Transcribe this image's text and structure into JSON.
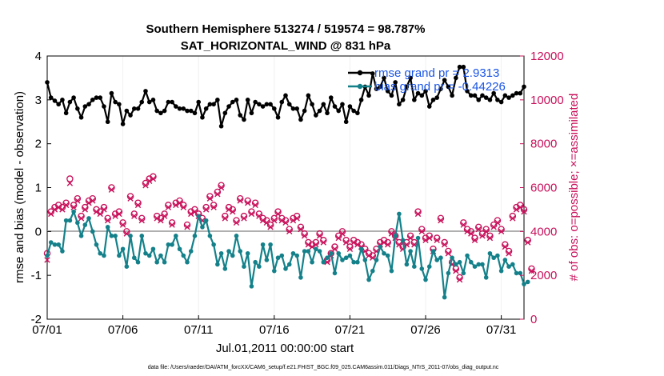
{
  "chart_data": {
    "type": "line",
    "title": "Southern Hemisphere 513274 / 519574 = 98.787%",
    "subtitle": "SAT_HORIZONTAL_WIND @ 831 hPa",
    "xlabel": "Jul.01,2011 00:00:00 start",
    "ylabel": "rmse and bias (model - observation)",
    "y2label": "# of obs: o=possible; ×=assimilated",
    "footnote": "data file: /Users/raeder/DAI/ATM_forcXX/CAM6_setup/f.e21.FHIST_BGC.f09_025.CAM6assim.011/Diags_NTrS_2011-07/obs_diag_output.nc",
    "x_range_days": [
      0,
      31.5
    ],
    "ylim": [
      -2,
      4
    ],
    "y2lim": [
      0,
      12000
    ],
    "xticks": [
      {
        "day": 0,
        "label": "07/01"
      },
      {
        "day": 5,
        "label": "07/06"
      },
      {
        "day": 10,
        "label": "07/11"
      },
      {
        "day": 15,
        "label": "07/16"
      },
      {
        "day": 20,
        "label": "07/21"
      },
      {
        "day": 25,
        "label": "07/26"
      },
      {
        "day": 30,
        "label": "07/31"
      }
    ],
    "yticks": [
      {
        "v": 4,
        "label": "4"
      },
      {
        "v": 3,
        "label": "3"
      },
      {
        "v": 2,
        "label": "2"
      },
      {
        "v": 1,
        "label": "1"
      },
      {
        "v": 0,
        "label": "0"
      },
      {
        "v": -1,
        "label": "-1"
      },
      {
        "v": -2,
        "label": "-2"
      }
    ],
    "y2ticks": [
      {
        "v": 12000,
        "label": "12000"
      },
      {
        "v": 10000,
        "label": "10000"
      },
      {
        "v": 8000,
        "label": "8000"
      },
      {
        "v": 6000,
        "label": "6000"
      },
      {
        "v": 4000,
        "label": "4000"
      },
      {
        "v": 2000,
        "label": "2000"
      },
      {
        "v": 0,
        "label": "0"
      }
    ],
    "x_step_days": 0.25,
    "series": [
      {
        "name": "rmse grand pr = 2.9313",
        "axis": "left",
        "color": "#000000",
        "values": [
          3.4,
          3.05,
          2.98,
          2.9,
          3.0,
          2.7,
          2.95,
          3.05,
          2.8,
          2.6,
          2.85,
          2.9,
          3.0,
          3.05,
          3.05,
          2.85,
          2.5,
          3.15,
          2.95,
          2.9,
          2.45,
          2.75,
          2.65,
          2.8,
          2.8,
          2.95,
          3.2,
          2.95,
          3.0,
          2.75,
          2.7,
          2.75,
          2.95,
          2.95,
          2.85,
          2.8,
          2.8,
          2.75,
          2.75,
          2.7,
          2.95,
          2.6,
          2.8,
          2.9,
          2.9,
          3.0,
          2.4,
          2.7,
          2.85,
          2.95,
          3.0,
          2.65,
          2.55,
          3.0,
          2.7,
          2.95,
          2.9,
          2.85,
          2.9,
          2.9,
          2.8,
          2.6,
          2.95,
          3.1,
          2.9,
          2.8,
          2.8,
          2.55,
          2.75,
          3.1,
          2.9,
          2.65,
          2.75,
          2.9,
          2.7,
          3.05,
          2.85,
          2.75,
          2.9,
          2.5,
          2.85,
          2.75,
          2.7,
          3.0,
          3.3,
          3.1,
          3.6,
          3.25,
          3.3,
          3.5,
          3.2,
          3.1,
          3.4,
          2.9,
          3.0,
          3.3,
          3.5,
          3.0,
          3.15,
          3.1,
          3.2,
          2.85,
          3.0,
          3.05,
          3.25,
          3.45,
          3.3,
          3.1,
          3.5,
          3.75,
          3.75,
          3.2,
          3.1,
          3.1,
          3.0,
          3.1,
          3.05,
          3.0,
          3.15,
          3.0,
          2.95,
          3.1,
          3.05,
          3.1,
          3.15,
          3.15,
          3.3
        ]
      },
      {
        "name": "bias grand pr = -0.44226",
        "axis": "left",
        "color": "#14818a",
        "values": [
          -0.55,
          -0.25,
          -0.3,
          -0.3,
          -0.45,
          0.25,
          0.25,
          0.45,
          0.2,
          -0.1,
          0.15,
          0.3,
          0.0,
          -0.3,
          -0.5,
          -0.55,
          0.1,
          -0.1,
          -0.1,
          -0.55,
          -0.4,
          -0.8,
          -0.1,
          -0.6,
          -0.7,
          -0.1,
          -0.5,
          -0.55,
          -0.4,
          -0.7,
          -0.55,
          -0.7,
          -0.3,
          -0.3,
          -0.1,
          -0.4,
          -0.55,
          -0.7,
          -0.45,
          -0.1,
          0.35,
          0.1,
          0.25,
          -0.1,
          -0.3,
          -0.75,
          -0.5,
          -0.85,
          -0.45,
          -0.55,
          -0.1,
          -0.45,
          -0.8,
          -0.5,
          -1.25,
          -0.7,
          -0.8,
          -0.3,
          -0.65,
          -0.3,
          -0.9,
          -0.6,
          -0.55,
          -0.85,
          -0.75,
          -0.5,
          -0.55,
          -1.05,
          -0.45,
          -0.45,
          -0.7,
          -0.4,
          -0.45,
          -0.7,
          -0.6,
          -0.5,
          -0.95,
          -0.5,
          -0.65,
          -0.6,
          -0.55,
          -0.7,
          -0.7,
          -0.4,
          -0.65,
          -1.1,
          -0.9,
          -0.65,
          -0.35,
          -0.5,
          -0.55,
          -0.9,
          -0.1,
          0.4,
          -0.2,
          -0.75,
          -0.45,
          -0.8,
          -0.15,
          -0.85,
          -1.1,
          -0.8,
          -0.45,
          -0.65,
          -0.6,
          -1.5,
          -0.95,
          -0.6,
          -0.75,
          -0.7,
          -0.95,
          -0.55,
          -0.7,
          -0.8,
          -0.75,
          -0.75,
          -1.05,
          -0.5,
          -0.6,
          -0.55,
          -0.9,
          -0.65,
          -0.8,
          -0.75,
          -0.95,
          -0.95,
          -1.2,
          -1.15
        ]
      },
      {
        "name": "obs possible",
        "axis": "right",
        "color": "#c8105a",
        "values": [
          3000,
          4900,
          5100,
          5200,
          5100,
          5300,
          6400,
          5200,
          5500,
          4700,
          5100,
          5400,
          5500,
          5000,
          4900,
          5100,
          4600,
          6000,
          4800,
          4900,
          4400,
          4000,
          5600,
          4800,
          5300,
          4600,
          6200,
          6400,
          6500,
          4700,
          4600,
          4800,
          5200,
          4400,
          5300,
          5400,
          5200,
          4300,
          4900,
          5000,
          4800,
          4600,
          5100,
          5600,
          5200,
          5800,
          6100,
          4700,
          5100,
          5000,
          4500,
          5500,
          4700,
          5400,
          4900,
          5300,
          4800,
          4600,
          4500,
          4300,
          4600,
          4900,
          4600,
          4500,
          4100,
          4600,
          4700,
          4200,
          3900,
          3500,
          3400,
          3500,
          3900,
          3600,
          2700,
          3000,
          3300,
          3800,
          4000,
          3600,
          3300,
          3600,
          3500,
          3400,
          3200,
          3000,
          2900,
          3200,
          3500,
          3600,
          3500,
          4000,
          3800,
          3500,
          3300,
          3500,
          3800,
          3500,
          4900,
          4100,
          3700,
          3800,
          3200,
          3700,
          4600,
          3500,
          3100,
          2600,
          2300,
          1900,
          4400,
          4100,
          4000,
          3700,
          4200,
          3900,
          4100,
          3800,
          4300,
          4500,
          4100,
          3400,
          3100,
          4700,
          5100,
          5200,
          5000,
          3600,
          2300
        ]
      },
      {
        "name": "obs assimilated",
        "axis": "right",
        "color": "#c8105a",
        "values": [
          2700,
          4800,
          5000,
          5100,
          5000,
          5200,
          6200,
          5100,
          5400,
          4600,
          5000,
          5300,
          5400,
          4900,
          4800,
          5000,
          4500,
          5900,
          4700,
          4800,
          4300,
          3900,
          5500,
          4700,
          5200,
          4500,
          6100,
          6300,
          6400,
          4600,
          4500,
          4700,
          5100,
          4300,
          5200,
          5300,
          5100,
          4200,
          4800,
          4900,
          4700,
          4500,
          5000,
          5500,
          5100,
          5700,
          6000,
          4600,
          5000,
          4900,
          4400,
          5400,
          4600,
          5300,
          4800,
          5200,
          4700,
          4500,
          4400,
          4200,
          4500,
          4800,
          4500,
          4400,
          4000,
          4500,
          4600,
          4100,
          3800,
          3400,
          3300,
          3400,
          3800,
          3500,
          2600,
          2900,
          3200,
          3700,
          3900,
          3500,
          3200,
          3500,
          3400,
          3300,
          3100,
          2900,
          2800,
          3100,
          3400,
          3500,
          3400,
          3900,
          3700,
          3400,
          3200,
          3400,
          3700,
          3400,
          4800,
          4000,
          3600,
          3700,
          3100,
          3600,
          4500,
          3400,
          3000,
          2500,
          2200,
          1800,
          4300,
          4000,
          3900,
          3600,
          4100,
          3800,
          4000,
          3700,
          4200,
          4400,
          4000,
          3300,
          3000,
          4600,
          5000,
          5100,
          4900,
          3500,
          2200
        ]
      }
    ],
    "legend": [
      {
        "label": "rmse grand pr = 2.9313",
        "color": "#000000"
      },
      {
        "label": "bias grand pr = -0.44226",
        "color": "#14818a"
      }
    ],
    "legend_position": "top-right"
  }
}
